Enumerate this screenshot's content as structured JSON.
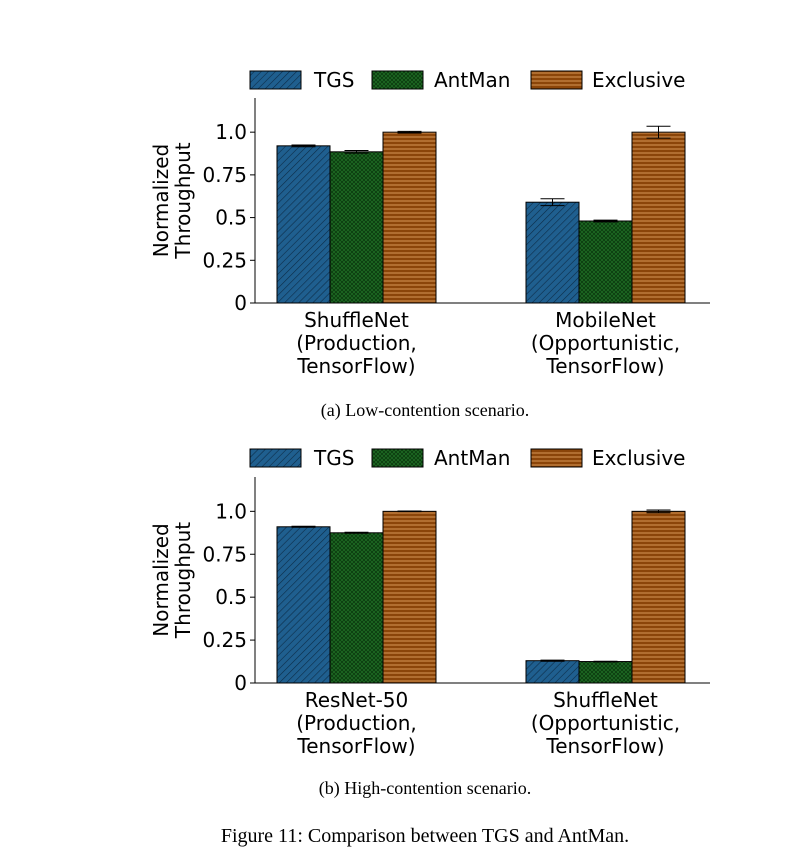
{
  "figure": {
    "caption": "Figure 11: Comparison between TGS and AntMan."
  },
  "legend": {
    "entries": [
      "TGS",
      "AntMan",
      "Exclusive"
    ]
  },
  "colors": {
    "TGS": "#1f5f8f",
    "AntMan": "#1e6b23",
    "Exclusive": "#8b4509"
  },
  "chart_data": [
    {
      "type": "bar",
      "caption": "(a) Low-contention scenario.",
      "ylabel": [
        "Normalized",
        "Throughput"
      ],
      "ylim": [
        0,
        1.2
      ],
      "yticks": [
        0,
        0.25,
        0.5,
        0.75,
        1.0
      ],
      "ytick_labels": [
        "0",
        "0.25",
        "0.5",
        "0.75",
        "1.0"
      ],
      "categories": [
        [
          "ShuffleNet",
          "(Production,",
          "TensorFlow)"
        ],
        [
          "MobileNet",
          "(Opportunistic,",
          "TensorFlow)"
        ]
      ],
      "series": [
        {
          "name": "TGS",
          "values": [
            0.92,
            0.59
          ],
          "errors": [
            0.005,
            0.02
          ]
        },
        {
          "name": "AntMan",
          "values": [
            0.885,
            0.48
          ],
          "errors": [
            0.008,
            0.005
          ]
        },
        {
          "name": "Exclusive",
          "values": [
            1.0,
            1.0
          ],
          "errors": [
            0.005,
            0.035
          ]
        }
      ],
      "grid": false,
      "legend_position": "top"
    },
    {
      "type": "bar",
      "caption": "(b) High-contention scenario.",
      "ylabel": [
        "Normalized",
        "Throughput"
      ],
      "ylim": [
        0,
        1.2
      ],
      "yticks": [
        0,
        0.25,
        0.5,
        0.75,
        1.0
      ],
      "ytick_labels": [
        "0",
        "0.25",
        "0.5",
        "0.75",
        "1.0"
      ],
      "categories": [
        [
          "ResNet-50",
          "(Production,",
          "TensorFlow)"
        ],
        [
          "ShuffleNet",
          "(Opportunistic,",
          "TensorFlow)"
        ]
      ],
      "series": [
        {
          "name": "TGS",
          "values": [
            0.91,
            0.13
          ],
          "errors": [
            0.003,
            0.003
          ]
        },
        {
          "name": "AntMan",
          "values": [
            0.875,
            0.125
          ],
          "errors": [
            0.003,
            0.002
          ]
        },
        {
          "name": "Exclusive",
          "values": [
            1.0,
            1.0
          ],
          "errors": [
            0.002,
            0.008
          ]
        }
      ],
      "grid": false,
      "legend_position": "top"
    }
  ]
}
